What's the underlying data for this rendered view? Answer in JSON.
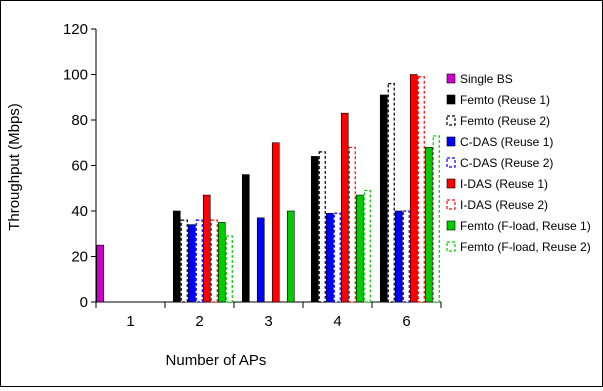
{
  "chart_data": {
    "type": "bar",
    "xlabel": "Number of APs",
    "ylabel": "Throughput (Mbps)",
    "ylim": [
      0,
      120
    ],
    "yticks": [
      0,
      20,
      40,
      60,
      80,
      100,
      120
    ],
    "categories": [
      "1",
      "2",
      "3",
      "4",
      "6"
    ],
    "grid": false,
    "legend_position": "right",
    "series": [
      {
        "name": "Single BS",
        "values": [
          25,
          null,
          null,
          null,
          null
        ],
        "color": "#cc00cc",
        "dashed": false
      },
      {
        "name": "Femto (Reuse 1)",
        "values": [
          null,
          40,
          56,
          64,
          91
        ],
        "color": "#000000",
        "dashed": false
      },
      {
        "name": "Femto (Reuse 2)",
        "values": [
          null,
          36,
          null,
          66,
          96
        ],
        "color": "#000000",
        "dashed": true
      },
      {
        "name": "C-DAS (Reuse 1)",
        "values": [
          null,
          34,
          37,
          39,
          40
        ],
        "color": "#0000ff",
        "dashed": false
      },
      {
        "name": "C-DAS (Reuse 2)",
        "values": [
          null,
          36,
          null,
          39,
          40
        ],
        "color": "#0000ff",
        "dashed": true
      },
      {
        "name": "I-DAS (Reuse 1)",
        "values": [
          null,
          47,
          70,
          83,
          100
        ],
        "color": "#ff0000",
        "dashed": false
      },
      {
        "name": "I-DAS (Reuse 2)",
        "values": [
          null,
          36,
          null,
          68,
          99
        ],
        "color": "#ff0000",
        "dashed": true
      },
      {
        "name": "Femto (F-load, Reuse 1)",
        "values": [
          null,
          35,
          40,
          47,
          68
        ],
        "color": "#00cc00",
        "dashed": false
      },
      {
        "name": "Femto (F-load, Reuse 2)",
        "values": [
          null,
          29,
          null,
          49,
          73
        ],
        "color": "#00cc00",
        "dashed": true
      }
    ]
  }
}
